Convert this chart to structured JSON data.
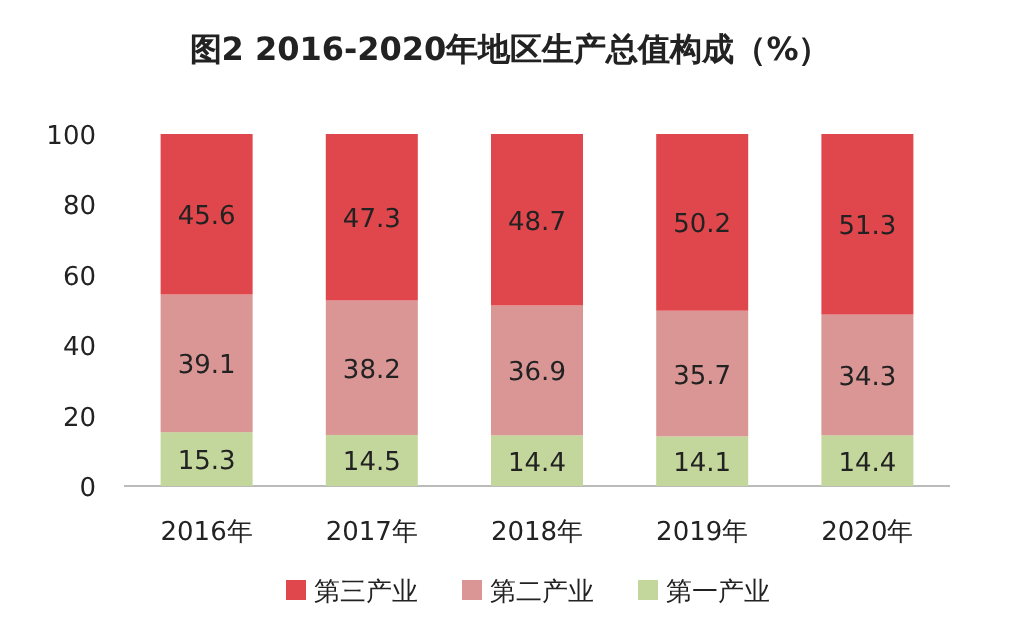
{
  "chart_data": {
    "type": "bar",
    "title": "图2 2016-2020年地区生产总值构成（%）",
    "categories": [
      "2016年",
      "2017年",
      "2018年",
      "2019年",
      "2020年"
    ],
    "stacked": true,
    "ylim": [
      0,
      100
    ],
    "yticks": [
      0,
      20,
      40,
      60,
      80,
      100
    ],
    "data_labels": true,
    "legend": "bottom",
    "series": [
      {
        "name": "第一产业",
        "color": "#c3d69b",
        "values": [
          15.3,
          14.5,
          14.4,
          14.1,
          14.4
        ]
      },
      {
        "name": "第二产业",
        "color": "#d99694",
        "values": [
          39.1,
          38.2,
          36.9,
          35.7,
          34.3
        ]
      },
      {
        "name": "第三产业",
        "color": "#e0474c",
        "values": [
          45.6,
          47.3,
          48.7,
          50.2,
          51.3
        ]
      }
    ]
  }
}
